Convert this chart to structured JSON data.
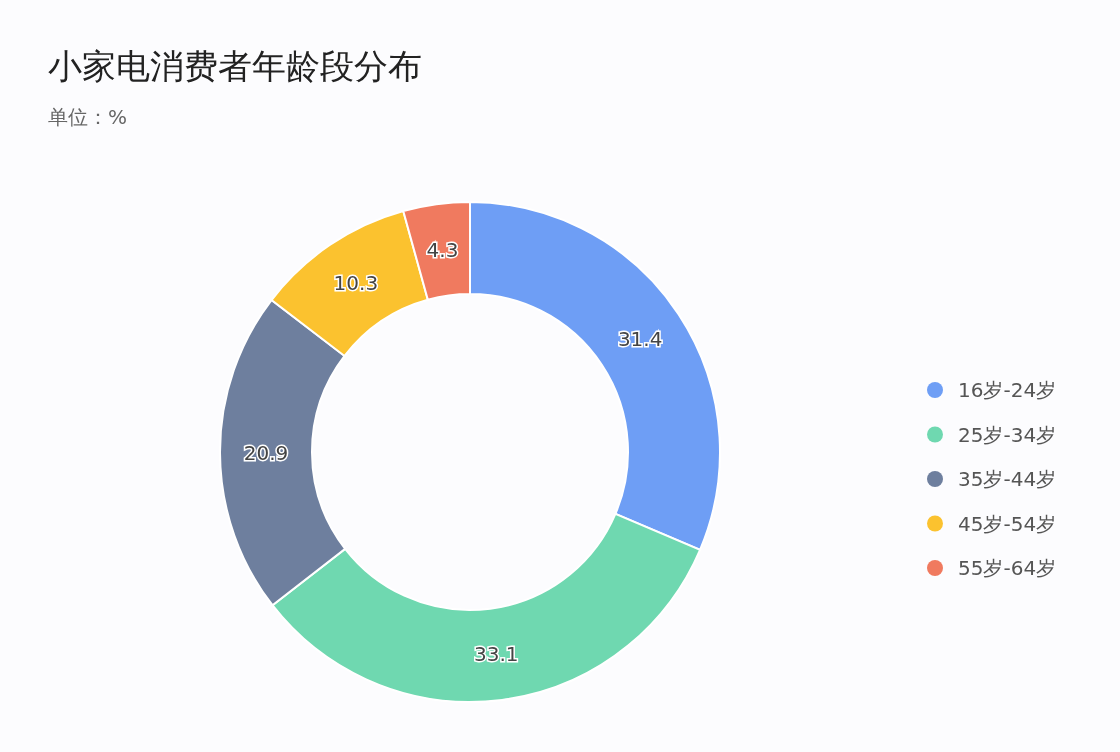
{
  "chart_data": {
    "type": "donut",
    "title": "小家电消费者年龄段分布",
    "subtitle": "单位：%",
    "categories": [
      "16岁-24岁",
      "25岁-34岁",
      "35岁-44岁",
      "45岁-54岁",
      "55岁-64岁"
    ],
    "values": [
      31.4,
      33.1,
      20.9,
      10.3,
      4.3
    ],
    "colors": [
      "#6e9ef5",
      "#6fd8b0",
      "#6e7f9e",
      "#fbc22f",
      "#f07a5f"
    ],
    "data_labels": true,
    "legend": "right"
  }
}
